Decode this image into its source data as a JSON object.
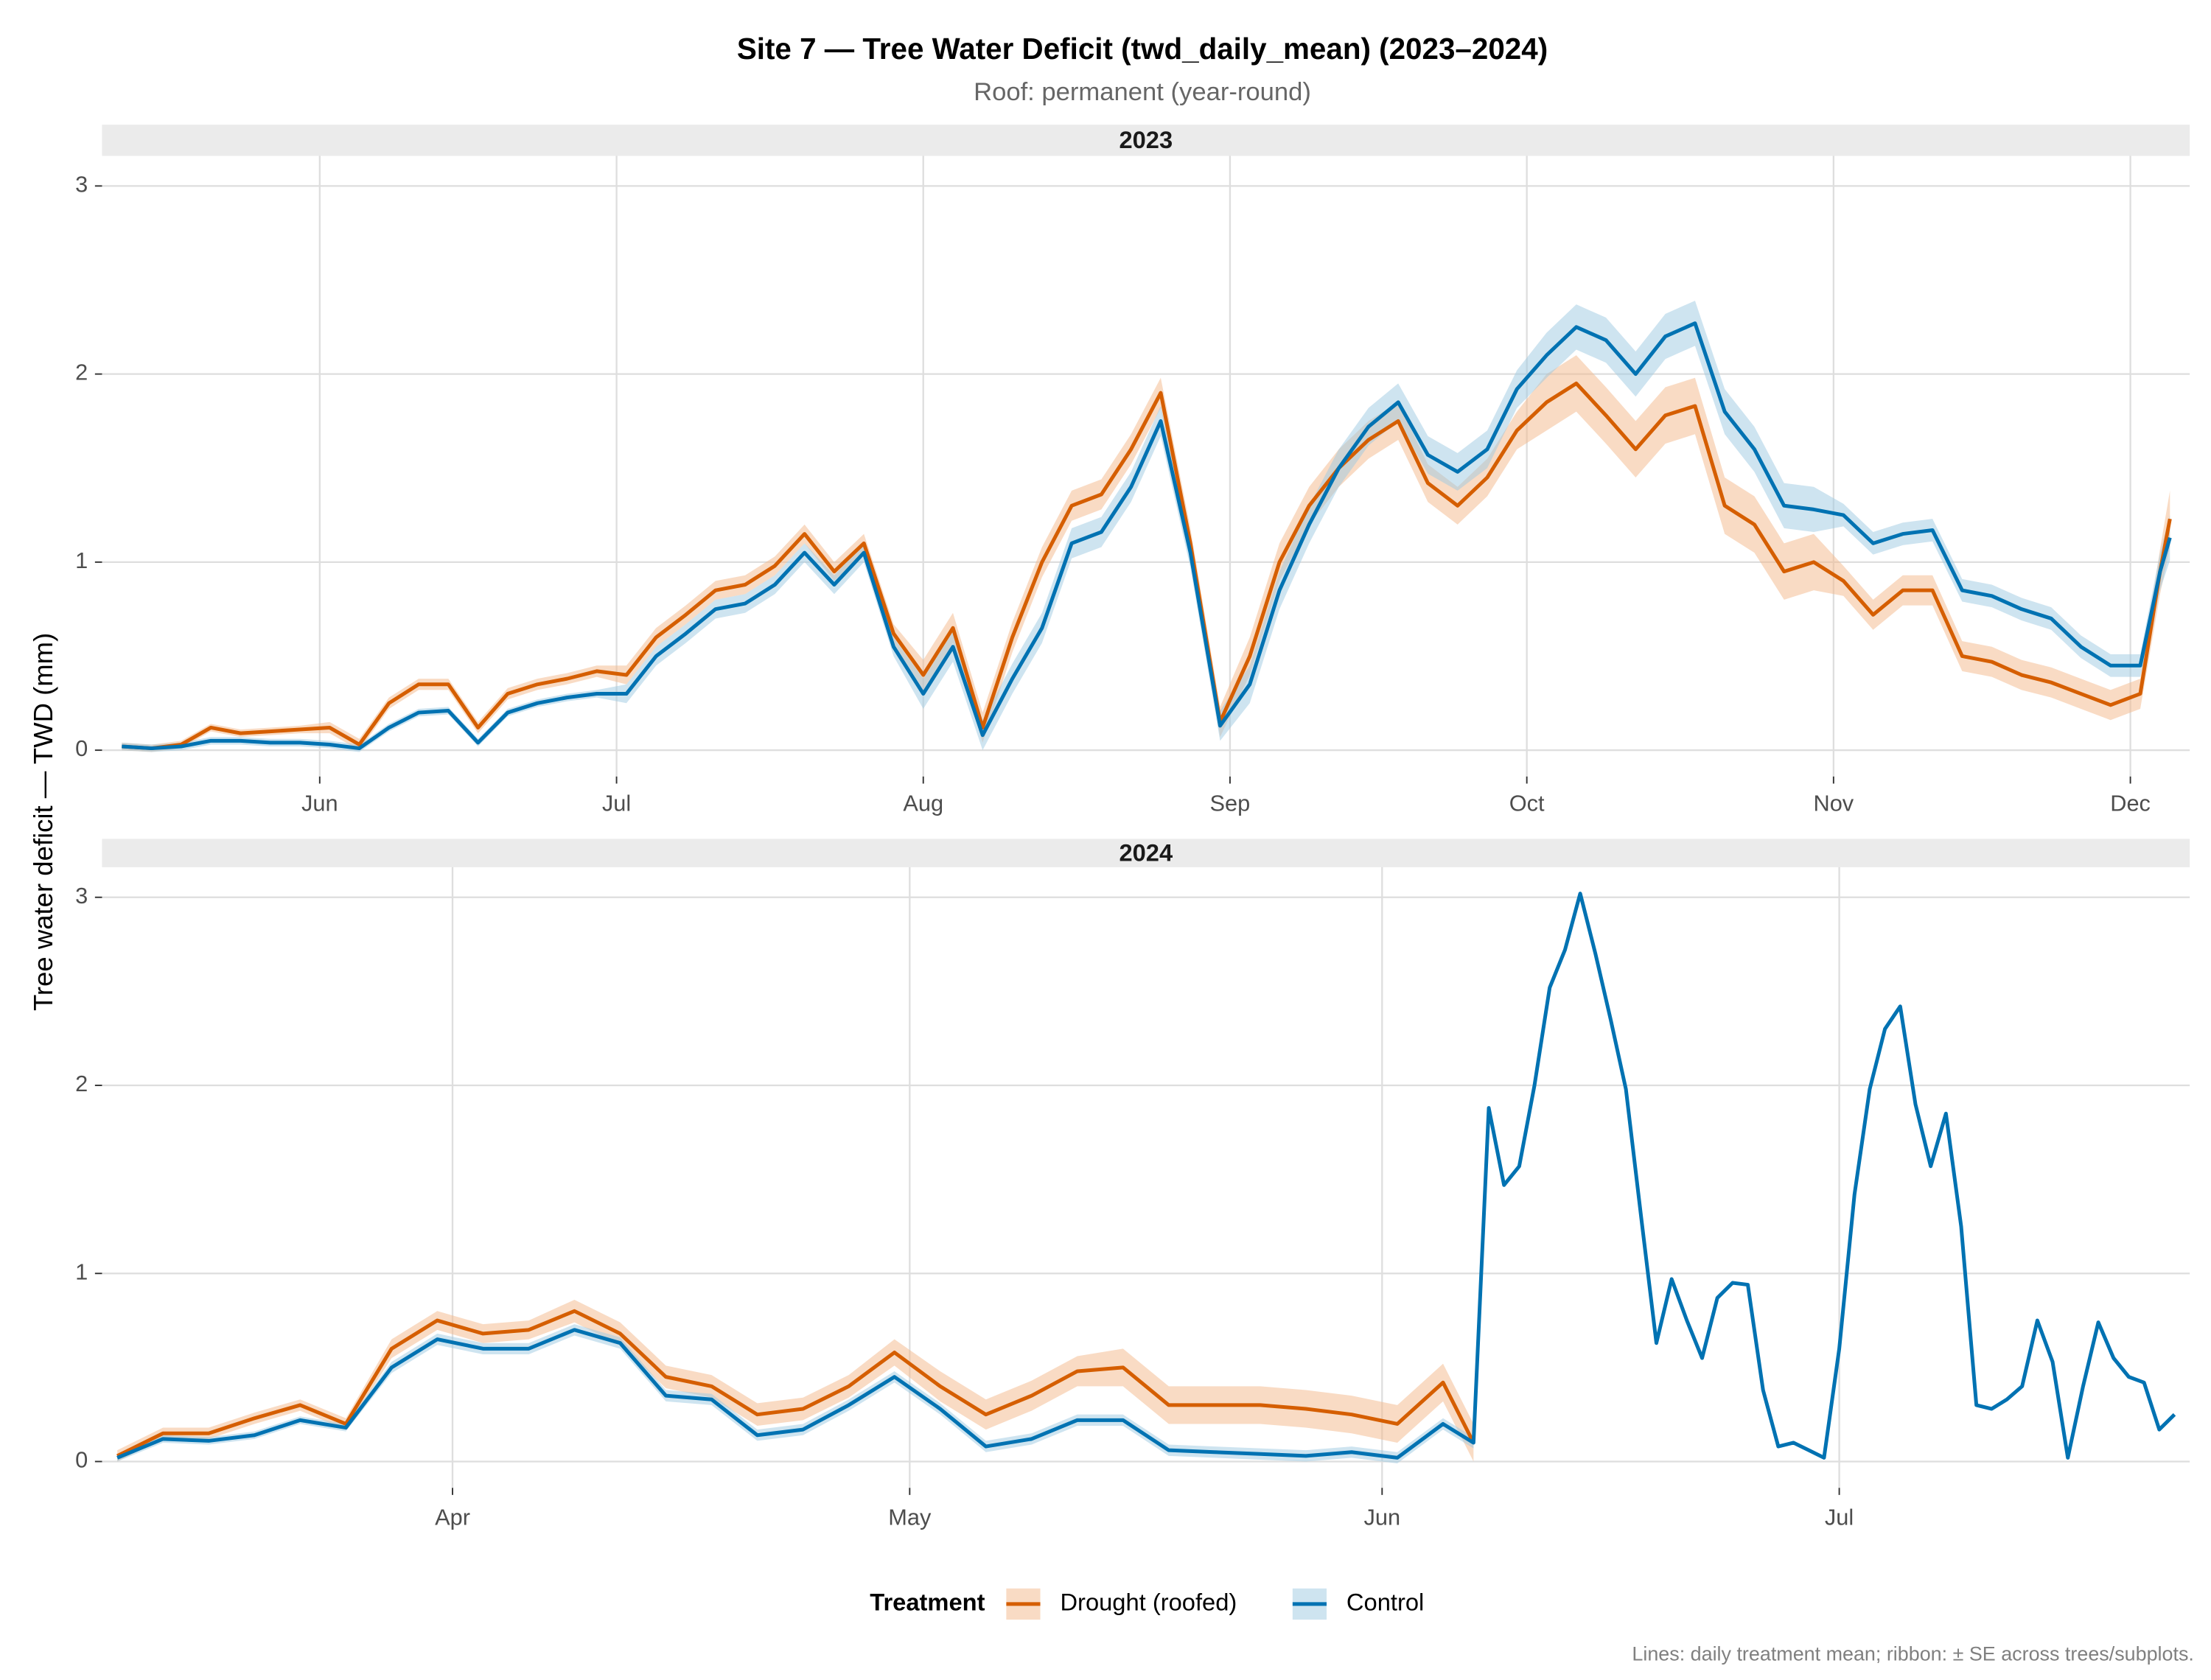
{
  "title": "Site 7 — Tree Water Deficit (twd_daily_mean) (2023–2024)",
  "subtitle": "Roof: permanent (year-round)",
  "y_label": "Tree water deficit — TWD (mm)",
  "legend_title": "Treatment",
  "caption": "Lines: daily treatment mean; ribbon: ± SE across trees/subplots.",
  "chart_data": [
    {
      "type": "line",
      "facet": "2023",
      "x": [
        "2023-05-12",
        "2023-05-15",
        "2023-05-18",
        "2023-05-21",
        "2023-05-24",
        "2023-05-27",
        "2023-05-30",
        "2023-06-02",
        "2023-06-05",
        "2023-06-08",
        "2023-06-11",
        "2023-06-14",
        "2023-06-17",
        "2023-06-20",
        "2023-06-23",
        "2023-06-26",
        "2023-06-29",
        "2023-07-02",
        "2023-07-05",
        "2023-07-08",
        "2023-07-11",
        "2023-07-14",
        "2023-07-17",
        "2023-07-20",
        "2023-07-23",
        "2023-07-26",
        "2023-07-29",
        "2023-08-01",
        "2023-08-04",
        "2023-08-07",
        "2023-08-10",
        "2023-08-13",
        "2023-08-16",
        "2023-08-19",
        "2023-08-22",
        "2023-08-25",
        "2023-08-28",
        "2023-08-31",
        "2023-09-03",
        "2023-09-06",
        "2023-09-09",
        "2023-09-12",
        "2023-09-15",
        "2023-09-18",
        "2023-09-21",
        "2023-09-24",
        "2023-09-27",
        "2023-09-30",
        "2023-10-03",
        "2023-10-06",
        "2023-10-09",
        "2023-10-12",
        "2023-10-15",
        "2023-10-18",
        "2023-10-21",
        "2023-10-24",
        "2023-10-27",
        "2023-10-30",
        "2023-11-02",
        "2023-11-05",
        "2023-11-08",
        "2023-11-11",
        "2023-11-14",
        "2023-11-17",
        "2023-11-20",
        "2023-11-23",
        "2023-11-26",
        "2023-11-29",
        "2023-12-02",
        "2023-12-04",
        "2023-12-05"
      ],
      "xlim": [
        "2023-05-10",
        "2023-12-07"
      ],
      "xticks": [
        {
          "value": "2023-06-01",
          "label": "Jun"
        },
        {
          "value": "2023-07-01",
          "label": "Jul"
        },
        {
          "value": "2023-08-01",
          "label": "Aug"
        },
        {
          "value": "2023-09-01",
          "label": "Sep"
        },
        {
          "value": "2023-10-01",
          "label": "Oct"
        },
        {
          "value": "2023-11-01",
          "label": "Nov"
        },
        {
          "value": "2023-12-01",
          "label": "Dec"
        }
      ],
      "ylim": [
        -0.14,
        3.16
      ],
      "yticks": [
        0,
        1,
        2,
        3
      ],
      "grid": true,
      "series": [
        {
          "name": "Drought (roofed)",
          "color": "#D55E00",
          "ribbon_color": "#F4B78A",
          "values": [
            0.02,
            0.01,
            0.03,
            0.12,
            0.09,
            0.1,
            0.11,
            0.12,
            0.03,
            0.25,
            0.35,
            0.35,
            0.12,
            0.3,
            0.35,
            0.38,
            0.42,
            0.4,
            0.6,
            0.72,
            0.85,
            0.88,
            0.98,
            1.15,
            0.95,
            1.1,
            0.62,
            0.4,
            0.65,
            0.12,
            0.6,
            1.0,
            1.3,
            1.36,
            1.6,
            1.9,
            1.1,
            0.15,
            0.5,
            1.0,
            1.3,
            1.5,
            1.65,
            1.75,
            1.42,
            1.3,
            1.45,
            1.7,
            1.85,
            1.95,
            1.78,
            1.6,
            1.78,
            1.83,
            1.3,
            1.2,
            0.95,
            1.0,
            0.9,
            0.72,
            0.85,
            0.85,
            0.5,
            0.47,
            0.4,
            0.36,
            0.3,
            0.24,
            0.3,
            0.95,
            1.23
          ],
          "se": [
            0.02,
            0.02,
            0.02,
            0.02,
            0.02,
            0.02,
            0.02,
            0.03,
            0.03,
            0.03,
            0.03,
            0.03,
            0.03,
            0.03,
            0.03,
            0.03,
            0.03,
            0.05,
            0.05,
            0.05,
            0.05,
            0.05,
            0.05,
            0.05,
            0.05,
            0.05,
            0.05,
            0.08,
            0.08,
            0.08,
            0.08,
            0.08,
            0.08,
            0.08,
            0.08,
            0.08,
            0.08,
            0.08,
            0.1,
            0.1,
            0.1,
            0.1,
            0.1,
            0.1,
            0.1,
            0.1,
            0.1,
            0.1,
            0.15,
            0.15,
            0.15,
            0.15,
            0.15,
            0.15,
            0.15,
            0.15,
            0.15,
            0.15,
            0.08,
            0.08,
            0.08,
            0.08,
            0.08,
            0.08,
            0.08,
            0.08,
            0.08,
            0.08,
            0.08,
            0.12,
            0.15
          ]
        },
        {
          "name": "Control",
          "color": "#0072B2",
          "ribbon_color": "#9ECAE1",
          "values": [
            0.02,
            0.01,
            0.02,
            0.05,
            0.05,
            0.04,
            0.04,
            0.03,
            0.01,
            0.12,
            0.2,
            0.21,
            0.04,
            0.2,
            0.25,
            0.28,
            0.3,
            0.3,
            0.5,
            0.62,
            0.75,
            0.78,
            0.88,
            1.05,
            0.88,
            1.05,
            0.55,
            0.3,
            0.55,
            0.08,
            0.38,
            0.65,
            1.1,
            1.16,
            1.4,
            1.75,
            1.05,
            0.13,
            0.35,
            0.85,
            1.2,
            1.5,
            1.72,
            1.85,
            1.57,
            1.48,
            1.6,
            1.92,
            2.1,
            2.25,
            2.18,
            2.0,
            2.2,
            2.27,
            1.8,
            1.6,
            1.3,
            1.28,
            1.25,
            1.1,
            1.15,
            1.17,
            0.85,
            0.82,
            0.75,
            0.7,
            0.55,
            0.45,
            0.45,
            0.95,
            1.13
          ],
          "se": [
            0.02,
            0.02,
            0.02,
            0.02,
            0.02,
            0.02,
            0.02,
            0.02,
            0.02,
            0.02,
            0.02,
            0.02,
            0.02,
            0.02,
            0.02,
            0.02,
            0.02,
            0.05,
            0.05,
            0.05,
            0.05,
            0.05,
            0.05,
            0.05,
            0.05,
            0.05,
            0.05,
            0.08,
            0.08,
            0.08,
            0.08,
            0.08,
            0.08,
            0.08,
            0.08,
            0.08,
            0.08,
            0.08,
            0.1,
            0.1,
            0.1,
            0.1,
            0.1,
            0.1,
            0.1,
            0.1,
            0.1,
            0.1,
            0.12,
            0.12,
            0.12,
            0.12,
            0.12,
            0.12,
            0.12,
            0.12,
            0.12,
            0.12,
            0.06,
            0.06,
            0.06,
            0.06,
            0.06,
            0.06,
            0.06,
            0.06,
            0.06,
            0.06,
            0.06,
            0.1,
            0.12
          ]
        }
      ]
    },
    {
      "type": "line",
      "facet": "2024",
      "x": [
        "2024-03-10",
        "2024-03-13",
        "2024-03-16",
        "2024-03-19",
        "2024-03-22",
        "2024-03-25",
        "2024-03-28",
        "2024-03-31",
        "2024-04-03",
        "2024-04-06",
        "2024-04-09",
        "2024-04-12",
        "2024-04-15",
        "2024-04-18",
        "2024-04-21",
        "2024-04-24",
        "2024-04-27",
        "2024-04-30",
        "2024-05-03",
        "2024-05-06",
        "2024-05-09",
        "2024-05-12",
        "2024-05-15",
        "2024-05-18",
        "2024-05-21",
        "2024-05-24",
        "2024-05-27",
        "2024-05-30",
        "2024-06-02",
        "2024-06-05",
        "2024-06-07",
        "2024-06-08",
        "2024-06-09",
        "2024-06-10",
        "2024-06-11",
        "2024-06-12",
        "2024-06-13",
        "2024-06-14",
        "2024-06-15",
        "2024-06-16",
        "2024-06-17",
        "2024-06-18",
        "2024-06-19",
        "2024-06-20",
        "2024-06-21",
        "2024-06-22",
        "2024-06-23",
        "2024-06-24",
        "2024-06-25",
        "2024-06-26",
        "2024-06-27",
        "2024-06-28",
        "2024-06-29",
        "2024-06-30",
        "2024-07-01",
        "2024-07-02",
        "2024-07-03",
        "2024-07-04",
        "2024-07-05",
        "2024-07-06",
        "2024-07-07",
        "2024-07-08",
        "2024-07-09",
        "2024-07-10",
        "2024-07-11",
        "2024-07-12",
        "2024-07-13",
        "2024-07-14",
        "2024-07-15",
        "2024-07-16",
        "2024-07-17",
        "2024-07-18",
        "2024-07-19",
        "2024-07-20",
        "2024-07-21",
        "2024-07-22",
        "2024-07-23"
      ],
      "xlim": [
        "2024-03-09",
        "2024-07-24"
      ],
      "xticks": [
        {
          "value": "2024-04-01",
          "label": "Apr"
        },
        {
          "value": "2024-05-01",
          "label": "May"
        },
        {
          "value": "2024-06-01",
          "label": "Jun"
        },
        {
          "value": "2024-07-01",
          "label": "Jul"
        }
      ],
      "ylim": [
        -0.14,
        3.16
      ],
      "yticks": [
        0,
        1,
        2,
        3
      ],
      "grid": true,
      "series": [
        {
          "name": "Drought (roofed)",
          "color": "#D55E00",
          "ribbon_color": "#F4B78A",
          "values": [
            0.03,
            0.15,
            0.15,
            0.23,
            0.3,
            0.2,
            0.6,
            0.75,
            0.68,
            0.7,
            0.8,
            0.68,
            0.45,
            0.4,
            0.25,
            0.28,
            0.4,
            0.58,
            0.4,
            0.25,
            0.35,
            0.48,
            0.5,
            0.3,
            0.3,
            0.3,
            0.28,
            0.25,
            0.2,
            0.42,
            0.1,
            null,
            null,
            null,
            null,
            null,
            null,
            null,
            null,
            null,
            null,
            null,
            null,
            null,
            null,
            null,
            null,
            null,
            null,
            null,
            null,
            null,
            null,
            null,
            null,
            null,
            null,
            null,
            null,
            null,
            null,
            null,
            null,
            null,
            null,
            null,
            null,
            null,
            null,
            null,
            null,
            null,
            null,
            null,
            null,
            null,
            null
          ],
          "se": [
            0.03,
            0.03,
            0.03,
            0.03,
            0.03,
            0.03,
            0.05,
            0.05,
            0.05,
            0.05,
            0.06,
            0.06,
            0.06,
            0.06,
            0.06,
            0.06,
            0.06,
            0.07,
            0.08,
            0.08,
            0.08,
            0.08,
            0.1,
            0.1,
            0.1,
            0.1,
            0.1,
            0.1,
            0.1,
            0.1,
            0.1,
            null,
            null,
            null,
            null,
            null,
            null,
            null,
            null,
            null,
            null,
            null,
            null,
            null,
            null,
            null,
            null,
            null,
            null,
            null,
            null,
            null,
            null,
            null,
            null,
            null,
            null,
            null,
            null,
            null,
            null,
            null,
            null,
            null,
            null,
            null,
            null,
            null,
            null,
            null,
            null,
            null,
            null,
            null,
            null,
            null,
            null
          ]
        },
        {
          "name": "Control",
          "color": "#0072B2",
          "ribbon_color": "#9ECAE1",
          "values": [
            0.02,
            0.12,
            0.11,
            0.14,
            0.22,
            0.18,
            0.5,
            0.65,
            0.6,
            0.6,
            0.7,
            0.63,
            0.35,
            0.33,
            0.14,
            0.17,
            0.3,
            0.45,
            0.28,
            0.08,
            0.12,
            0.22,
            0.22,
            0.06,
            0.05,
            0.04,
            0.03,
            0.05,
            0.02,
            0.2,
            0.1,
            1.88,
            1.47,
            1.57,
            2.0,
            2.52,
            2.72,
            3.02,
            2.7,
            2.35,
            1.98,
            1.3,
            0.63,
            0.97,
            0.75,
            0.55,
            0.87,
            0.95,
            0.94,
            0.38,
            0.08,
            0.1,
            0.06,
            0.02,
            0.6,
            1.42,
            1.98,
            2.3,
            2.42,
            1.9,
            1.57,
            1.85,
            1.25,
            0.3,
            0.28,
            0.33,
            0.4,
            0.75,
            0.53,
            0.02,
            0.4,
            0.74,
            0.55,
            0.45,
            0.42,
            0.17,
            0.25
          ],
          "se": [
            0.02,
            0.02,
            0.02,
            0.02,
            0.02,
            0.02,
            0.03,
            0.03,
            0.03,
            0.03,
            0.03,
            0.03,
            0.03,
            0.03,
            0.03,
            0.03,
            0.03,
            0.03,
            0.03,
            0.03,
            0.03,
            0.03,
            0.03,
            0.03,
            0.03,
            0.03,
            0.03,
            0.03,
            0.03,
            0.03,
            0.03,
            null,
            null,
            null,
            null,
            null,
            null,
            null,
            null,
            null,
            null,
            null,
            null,
            null,
            null,
            null,
            null,
            null,
            null,
            null,
            null,
            null,
            null,
            null,
            null,
            null,
            null,
            null,
            null,
            null,
            null,
            null,
            null,
            null,
            null,
            null,
            null,
            null,
            null,
            null,
            null,
            null,
            null,
            null,
            null,
            null,
            null
          ]
        }
      ]
    }
  ]
}
